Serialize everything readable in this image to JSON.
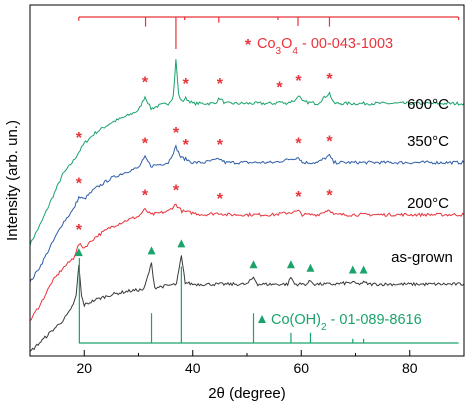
{
  "chart_data": {
    "type": "line",
    "xlabel": "2θ (degree)",
    "ylabel": "Intensity (arb. un.)",
    "xlim": [
      10,
      90
    ],
    "x_ticks": [
      "20",
      "40",
      "60",
      "80"
    ],
    "y_ticks_shown": false,
    "grid": false,
    "series": [
      {
        "name": "600°C",
        "color": "#1aa36b",
        "peak_marker": "*",
        "peak_marker_color": "#e8333b",
        "points": [
          [
            10.0,
            0.31
          ],
          [
            12.0,
            0.37
          ],
          [
            14.0,
            0.44
          ],
          [
            16.0,
            0.51
          ],
          [
            18.0,
            0.55
          ],
          [
            19.0,
            0.575
          ],
          [
            20.0,
            0.6
          ],
          [
            22.0,
            0.63
          ],
          [
            25.0,
            0.66
          ],
          [
            28.0,
            0.68
          ],
          [
            30.0,
            0.695
          ],
          [
            31.2,
            0.735
          ],
          [
            32.3,
            0.7
          ],
          [
            34.0,
            0.71
          ],
          [
            35.5,
            0.715
          ],
          [
            36.4,
            0.735
          ],
          [
            36.9,
            0.84
          ],
          [
            37.4,
            0.74
          ],
          [
            38.0,
            0.72
          ],
          [
            38.7,
            0.73
          ],
          [
            40.0,
            0.715
          ],
          [
            42.0,
            0.715
          ],
          [
            44.0,
            0.715
          ],
          [
            45.0,
            0.73
          ],
          [
            46.0,
            0.715
          ],
          [
            50.0,
            0.715
          ],
          [
            55.0,
            0.715
          ],
          [
            56.0,
            0.72
          ],
          [
            57.0,
            0.715
          ],
          [
            59.0,
            0.725
          ],
          [
            59.5,
            0.74
          ],
          [
            60.2,
            0.72
          ],
          [
            63.0,
            0.715
          ],
          [
            65.2,
            0.745
          ],
          [
            66.0,
            0.715
          ],
          [
            70.0,
            0.715
          ],
          [
            75.0,
            0.715
          ],
          [
            80.0,
            0.715
          ],
          [
            85.0,
            0.715
          ],
          [
            90.0,
            0.715
          ]
        ]
      },
      {
        "name": "350°C",
        "color": "#2f5fa8",
        "peak_marker": "*",
        "peak_marker_color": "#e8333b",
        "points": [
          [
            10.0,
            0.2
          ],
          [
            12.0,
            0.25
          ],
          [
            14.0,
            0.31
          ],
          [
            16.0,
            0.37
          ],
          [
            18.0,
            0.41
          ],
          [
            19.0,
            0.445
          ],
          [
            20.0,
            0.44
          ],
          [
            22.0,
            0.47
          ],
          [
            25.0,
            0.5
          ],
          [
            28.0,
            0.52
          ],
          [
            30.0,
            0.53
          ],
          [
            31.2,
            0.56
          ],
          [
            32.3,
            0.535
          ],
          [
            34.0,
            0.54
          ],
          [
            35.5,
            0.545
          ],
          [
            36.9,
            0.59
          ],
          [
            37.8,
            0.56
          ],
          [
            38.7,
            0.555
          ],
          [
            40.0,
            0.545
          ],
          [
            42.0,
            0.545
          ],
          [
            45.0,
            0.555
          ],
          [
            46.0,
            0.545
          ],
          [
            50.0,
            0.545
          ],
          [
            55.0,
            0.545
          ],
          [
            59.5,
            0.56
          ],
          [
            60.2,
            0.545
          ],
          [
            63.0,
            0.545
          ],
          [
            65.2,
            0.565
          ],
          [
            66.0,
            0.545
          ],
          [
            70.0,
            0.545
          ],
          [
            75.0,
            0.545
          ],
          [
            80.0,
            0.545
          ],
          [
            85.0,
            0.545
          ],
          [
            90.0,
            0.545
          ]
        ]
      },
      {
        "name": "200°C",
        "color": "#e8333b",
        "peak_marker": "*",
        "peak_marker_color": "#e8333b",
        "points": [
          [
            10.0,
            0.09
          ],
          [
            12.0,
            0.14
          ],
          [
            14.0,
            0.2
          ],
          [
            16.0,
            0.24
          ],
          [
            18.0,
            0.27
          ],
          [
            19.0,
            0.31
          ],
          [
            20.0,
            0.3
          ],
          [
            22.0,
            0.33
          ],
          [
            25.0,
            0.36
          ],
          [
            28.0,
            0.38
          ],
          [
            30.0,
            0.39
          ],
          [
            31.2,
            0.41
          ],
          [
            32.3,
            0.395
          ],
          [
            34.0,
            0.4
          ],
          [
            35.5,
            0.405
          ],
          [
            36.9,
            0.425
          ],
          [
            38.0,
            0.405
          ],
          [
            40.0,
            0.4
          ],
          [
            42.0,
            0.395
          ],
          [
            45.0,
            0.4
          ],
          [
            46.0,
            0.395
          ],
          [
            50.0,
            0.395
          ],
          [
            55.0,
            0.395
          ],
          [
            59.5,
            0.405
          ],
          [
            60.2,
            0.395
          ],
          [
            63.0,
            0.395
          ],
          [
            65.2,
            0.41
          ],
          [
            66.0,
            0.395
          ],
          [
            70.0,
            0.395
          ],
          [
            75.0,
            0.395
          ],
          [
            80.0,
            0.395
          ],
          [
            85.0,
            0.395
          ],
          [
            90.0,
            0.395
          ]
        ]
      },
      {
        "name": "as-grown",
        "color": "#3a3a3a",
        "peak_marker": "▲",
        "peak_marker_color": "#1aa36b",
        "points": [
          [
            10.0,
            0.0
          ],
          [
            12.0,
            0.03
          ],
          [
            14.0,
            0.06
          ],
          [
            16.0,
            0.09
          ],
          [
            17.5,
            0.12
          ],
          [
            18.5,
            0.16
          ],
          [
            19.0,
            0.25
          ],
          [
            19.5,
            0.16
          ],
          [
            20.0,
            0.135
          ],
          [
            22.0,
            0.15
          ],
          [
            25.0,
            0.165
          ],
          [
            28.0,
            0.175
          ],
          [
            31.0,
            0.18
          ],
          [
            32.4,
            0.255
          ],
          [
            33.0,
            0.185
          ],
          [
            35.0,
            0.19
          ],
          [
            37.0,
            0.195
          ],
          [
            37.9,
            0.275
          ],
          [
            38.6,
            0.2
          ],
          [
            40.0,
            0.195
          ],
          [
            45.0,
            0.195
          ],
          [
            50.0,
            0.195
          ],
          [
            51.2,
            0.215
          ],
          [
            52.0,
            0.195
          ],
          [
            55.0,
            0.195
          ],
          [
            57.5,
            0.195
          ],
          [
            58.1,
            0.215
          ],
          [
            58.8,
            0.195
          ],
          [
            61.0,
            0.195
          ],
          [
            61.7,
            0.205
          ],
          [
            62.5,
            0.195
          ],
          [
            66.0,
            0.195
          ],
          [
            69.5,
            0.2
          ],
          [
            70.5,
            0.195
          ],
          [
            71.5,
            0.2
          ],
          [
            72.5,
            0.195
          ],
          [
            75.0,
            0.195
          ],
          [
            80.0,
            0.195
          ],
          [
            85.0,
            0.195
          ],
          [
            90.0,
            0.195
          ]
        ]
      }
    ],
    "reference_patterns": [
      {
        "label": "Co3O4 - 00-043-1003",
        "label_parts": {
          "symbol": "*",
          "base": "Co",
          "sub1": "3",
          "mid": "O",
          "sub2": "4",
          "suffix": " - 00-043-1003"
        },
        "color": "#e8333b",
        "position": "top",
        "lines": [
          {
            "two_theta": 19.0,
            "intensity": 0.12
          },
          {
            "two_theta": 31.3,
            "intensity": 0.3
          },
          {
            "two_theta": 36.9,
            "intensity": 1.0
          },
          {
            "two_theta": 38.5,
            "intensity": 0.05
          },
          {
            "two_theta": 44.8,
            "intensity": 0.18
          },
          {
            "two_theta": 55.7,
            "intensity": 0.08
          },
          {
            "two_theta": 59.4,
            "intensity": 0.28
          },
          {
            "two_theta": 65.2,
            "intensity": 0.3
          },
          {
            "two_theta": 89.0,
            "intensity": 0.08
          }
        ]
      },
      {
        "label": "Co(OH)2 - 01-089-8616",
        "label_parts": {
          "symbol": "▲",
          "base": "Co(OH)",
          "sub1": "2",
          "mid": "",
          "sub2": "",
          "suffix": " - 01-089-8616"
        },
        "color": "#1aa36b",
        "position": "bottom",
        "lines": [
          {
            "two_theta": 19.1,
            "intensity": 1.0
          },
          {
            "two_theta": 32.4,
            "intensity": 0.35
          },
          {
            "two_theta": 37.9,
            "intensity": 0.9
          },
          {
            "two_theta": 51.2,
            "intensity": 0.35
          },
          {
            "two_theta": 58.1,
            "intensity": 0.12
          },
          {
            "two_theta": 61.7,
            "intensity": 0.12
          },
          {
            "two_theta": 69.5,
            "intensity": 0.05
          },
          {
            "two_theta": 71.5,
            "intensity": 0.05
          }
        ]
      }
    ],
    "peak_markers": [
      {
        "series": "600°C",
        "two_theta": [
          19.0,
          31.2,
          38.7,
          45.0,
          56.0,
          59.5,
          65.2
        ]
      },
      {
        "series": "350°C",
        "two_theta": [
          19.0,
          31.2,
          36.9,
          38.7,
          45.0,
          59.5,
          65.2
        ]
      },
      {
        "series": "200°C",
        "two_theta": [
          19.0,
          31.2,
          36.9,
          45.0,
          59.5,
          65.2
        ]
      },
      {
        "series": "as-grown",
        "two_theta": [
          19.0,
          32.4,
          37.9,
          51.2,
          58.1,
          61.7,
          69.5,
          71.5
        ]
      }
    ]
  },
  "labels": {
    "series_600": "600°C",
    "series_350": "350°C",
    "series_200": "200°C",
    "series_asgrown": "as-grown"
  }
}
